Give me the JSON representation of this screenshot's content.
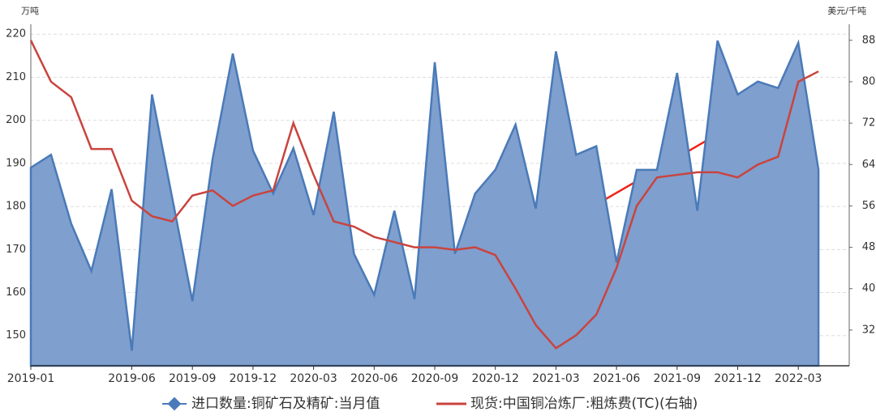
{
  "chart_data": {
    "type": "area_line",
    "y_unit": "万吨",
    "y2_unit": "美元/千吨",
    "categories": [
      "2019-01",
      null,
      null,
      null,
      null,
      "2019-06",
      null,
      null,
      "2019-09",
      null,
      null,
      "2019-12",
      null,
      null,
      "2020-03",
      null,
      null,
      "2020-06",
      null,
      null,
      "2020-09",
      null,
      null,
      "2020-12",
      null,
      null,
      "2021-03",
      null,
      null,
      "2021-06",
      null,
      null,
      "2021-09",
      null,
      null,
      "2021-12",
      null,
      null,
      "2022-03",
      null
    ],
    "ylim": [
      143,
      222.3
    ],
    "yticks": [
      150,
      160,
      170,
      180,
      190,
      200,
      210,
      220
    ],
    "y2lim": [
      25.1,
      91.1
    ],
    "y2ticks": [
      32,
      40,
      48,
      56,
      64,
      72,
      80,
      88
    ],
    "grid": true,
    "legend": "bottom",
    "series": [
      {
        "name": "进口数量:铜矿石及精矿:当月值",
        "color": "#4a7ab8",
        "fill": "#7f9fce",
        "values": [
          189,
          192,
          176,
          165,
          184,
          146.5,
          206,
          182,
          158,
          191,
          215.5,
          193,
          183,
          193.5,
          178,
          202,
          169,
          159.5,
          179,
          158.5,
          213.5,
          169,
          183,
          188.5,
          199,
          179.5,
          216,
          192,
          194,
          167,
          188.5,
          188.5,
          211,
          179,
          218.5,
          206,
          209,
          207.5,
          218,
          188.5
        ]
      },
      {
        "name": "现货:中国铜冶炼厂:粗炼费(TC)(右轴)",
        "color": "#c9443f",
        "axis": "y2",
        "values": [
          88,
          80,
          77,
          67,
          67,
          57,
          54,
          53,
          58,
          59,
          56,
          58,
          59,
          72,
          62,
          53,
          52,
          50,
          49,
          48,
          48,
          47.5,
          48,
          46.5,
          40,
          33,
          28.5,
          31,
          35,
          44,
          56,
          61.5,
          62,
          62.5,
          62.5,
          61.5,
          64,
          65.5,
          80,
          82
        ]
      }
    ]
  }
}
